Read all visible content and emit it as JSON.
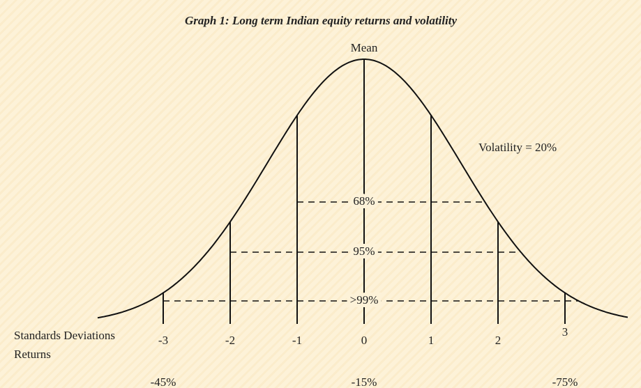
{
  "title": "Graph 1: Long term Indian equity returns and volatility",
  "mean_label": "Mean",
  "volatility_label": "Volatility = 20%",
  "bands": [
    "68%",
    "95%",
    ">99%"
  ],
  "axis": {
    "sd_label": "Standards Deviations",
    "returns_label": "Returns",
    "sd_ticks": [
      "-3",
      "-2",
      "-1",
      "0",
      "1",
      "2",
      "3"
    ],
    "returns": [
      "-45%",
      "-15%",
      "-75%"
    ]
  }
}
